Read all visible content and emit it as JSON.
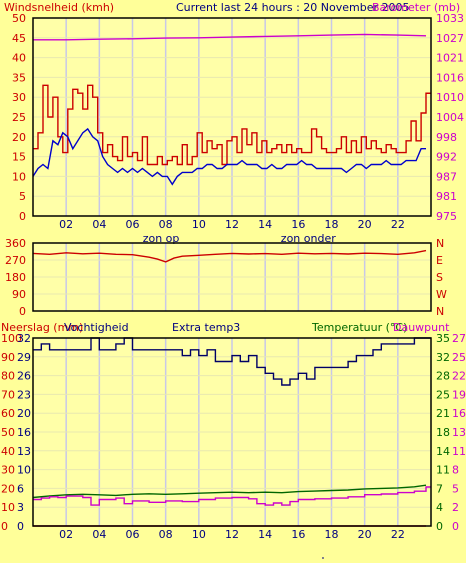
{
  "colors": {
    "background": "#ffff99",
    "plot_bg": "#ffffa8",
    "grid_v": "#c8c8e8",
    "wind_axis": "#cc0000",
    "baro_axis": "#cc00cc",
    "frame": "#000000",
    "blue": "#0000cc",
    "green": "#006600",
    "dark_green": "#006600"
  },
  "header": {
    "wind_title": "Windsnelheid (kmh)",
    "main_title": "Current last 24 hours : 20 November 2005",
    "baro_title": "Barometer (mb)"
  },
  "section3_header": {
    "left_title": "Neerslag (mm)",
    "humidity_title": "Vochtigheid",
    "extra_title": "Extra temp3",
    "temp_title": "Temperatuur (°C)",
    "dew_title": "Dauwpunt"
  },
  "axes": {
    "hour_ticks": [
      "02",
      "04",
      "06",
      "08",
      "10",
      "12",
      "14",
      "16",
      "18",
      "20",
      "22"
    ],
    "sunrise_label": "zon op",
    "sunset_label": "zon onder",
    "wind_ticks": [
      "0",
      "5",
      "10",
      "15",
      "20",
      "25",
      "30",
      "35",
      "40",
      "45",
      "50"
    ],
    "baro_ticks": [
      "975",
      "981",
      "987",
      "992",
      "998",
      "1004",
      "1010",
      "1016",
      "1021",
      "1027",
      "1033"
    ],
    "dir_ticks": [
      "0",
      "90",
      "180",
      "270",
      "360"
    ],
    "compass_labels": [
      "N",
      "W",
      "S",
      "E",
      "N"
    ],
    "rain_ticks": [
      "0",
      "10",
      "20",
      "30",
      "40",
      "50",
      "60",
      "70",
      "80",
      "90",
      "100"
    ],
    "humidity_ticks": [
      "0",
      "3",
      "6",
      "10",
      "13",
      "16",
      "20",
      "23",
      "26",
      "29",
      "32"
    ],
    "temp_ticks": [
      "0",
      "4",
      "7",
      "11",
      "14",
      "18",
      "21",
      "25",
      "28",
      "32",
      "35"
    ],
    "dew_ticks": [
      "0",
      "2",
      "5",
      "8",
      "11",
      "13",
      "16",
      "19",
      "22",
      "25",
      "27"
    ]
  },
  "chart_data": [
    {
      "type": "line",
      "panel": "wind-barometer",
      "x_unit": "hour",
      "x_range": [
        0,
        24
      ],
      "ylim": [
        0,
        50
      ],
      "y2lim": [
        975,
        1033
      ],
      "series": [
        {
          "name": "Windsnelheid (kmh)",
          "axis": "left",
          "color": "#cc0000",
          "x": [
            0,
            0.3,
            0.6,
            0.9,
            1.2,
            1.5,
            1.8,
            2.1,
            2.4,
            2.7,
            3,
            3.3,
            3.6,
            3.9,
            4.2,
            4.5,
            4.8,
            5.1,
            5.4,
            5.7,
            6,
            6.3,
            6.6,
            6.9,
            7.2,
            7.5,
            7.8,
            8.1,
            8.4,
            8.7,
            9,
            9.3,
            9.6,
            9.9,
            10.2,
            10.5,
            10.8,
            11.1,
            11.4,
            11.7,
            12,
            12.3,
            12.6,
            12.9,
            13.2,
            13.5,
            13.8,
            14.1,
            14.4,
            14.7,
            15,
            15.3,
            15.6,
            15.9,
            16.2,
            16.5,
            16.8,
            17.1,
            17.4,
            17.7,
            18,
            18.3,
            18.6,
            18.9,
            19.2,
            19.5,
            19.8,
            20.1,
            20.4,
            20.7,
            21,
            21.3,
            21.6,
            21.9,
            22.2,
            22.5,
            22.8,
            23.1,
            23.4,
            23.7
          ],
          "y": [
            17,
            21,
            33,
            25,
            30,
            20,
            16,
            27,
            32,
            31,
            27,
            33,
            30,
            21,
            16,
            18,
            15,
            14,
            20,
            15,
            16,
            14,
            20,
            13,
            13,
            15,
            13,
            14,
            15,
            13,
            18,
            13,
            15,
            21,
            16,
            19,
            17,
            18,
            13,
            19,
            20,
            16,
            22,
            18,
            21,
            16,
            19,
            16,
            17,
            18,
            16,
            18,
            16,
            17,
            16,
            16,
            22,
            20,
            17,
            16,
            16,
            17,
            20,
            16,
            19,
            16,
            20,
            17,
            19,
            17,
            16,
            18,
            17,
            16,
            16,
            19,
            24,
            19,
            26,
            31
          ]
        },
        {
          "name": "",
          "axis": "left",
          "color": "#0000cc",
          "x": [
            0,
            0.3,
            0.6,
            0.9,
            1.2,
            1.5,
            1.8,
            2.1,
            2.4,
            2.7,
            3,
            3.3,
            3.6,
            3.9,
            4.2,
            4.5,
            4.8,
            5.1,
            5.4,
            5.7,
            6,
            6.3,
            6.6,
            6.9,
            7.2,
            7.5,
            7.8,
            8.1,
            8.4,
            8.7,
            9,
            9.3,
            9.6,
            9.9,
            10.2,
            10.5,
            10.8,
            11.1,
            11.4,
            11.7,
            12,
            12.3,
            12.6,
            12.9,
            13.2,
            13.5,
            13.8,
            14.1,
            14.4,
            14.7,
            15,
            15.3,
            15.6,
            15.9,
            16.2,
            16.5,
            16.8,
            17.1,
            17.4,
            17.7,
            18,
            18.3,
            18.6,
            18.9,
            19.2,
            19.5,
            19.8,
            20.1,
            20.4,
            20.7,
            21,
            21.3,
            21.6,
            21.9,
            22.2,
            22.5,
            22.8,
            23.1,
            23.4,
            23.7
          ],
          "y": [
            10,
            12,
            13,
            12,
            19,
            18,
            21,
            20,
            17,
            19,
            21,
            22,
            20,
            19,
            15,
            13,
            12,
            11,
            12,
            11,
            12,
            11,
            12,
            11,
            10,
            11,
            10,
            10,
            8,
            10,
            11,
            11,
            11,
            12,
            12,
            13,
            13,
            12,
            12,
            13,
            13,
            13,
            14,
            13,
            13,
            13,
            12,
            12,
            13,
            12,
            12,
            13,
            13,
            13,
            14,
            13,
            13,
            12,
            12,
            12,
            12,
            12,
            12,
            11,
            12,
            13,
            13,
            12,
            13,
            13,
            13,
            14,
            13,
            13,
            13,
            14,
            14,
            14,
            17,
            17
          ]
        },
        {
          "name": "Barometer (mb)",
          "axis": "right",
          "color": "#cc00cc",
          "x": [
            0,
            2,
            4,
            6,
            8,
            10,
            12,
            14,
            16,
            18,
            20,
            22,
            23.7
          ],
          "y": [
            1026.6,
            1026.6,
            1026.8,
            1026.9,
            1027.1,
            1027.2,
            1027.4,
            1027.6,
            1027.8,
            1028.0,
            1028.2,
            1028.0,
            1027.8
          ]
        }
      ],
      "annotations": {
        "sunrise_hour": 7.6,
        "sunset_hour": 16.6
      }
    },
    {
      "type": "line",
      "panel": "wind-direction",
      "x_range": [
        0,
        24
      ],
      "ylim": [
        0,
        360
      ],
      "series": [
        {
          "name": "",
          "color": "#cc0000",
          "x": [
            0,
            1,
            2,
            3,
            4,
            5,
            6,
            7,
            7.5,
            8,
            8.5,
            9,
            10,
            11,
            12,
            13,
            14,
            15,
            16,
            17,
            18,
            19,
            20,
            21,
            22,
            23,
            23.7
          ],
          "y": [
            305,
            300,
            308,
            303,
            306,
            300,
            298,
            285,
            275,
            260,
            280,
            290,
            295,
            300,
            305,
            302,
            304,
            300,
            306,
            303,
            305,
            302,
            306,
            304,
            300,
            308,
            320
          ]
        }
      ]
    },
    {
      "type": "line",
      "panel": "humidity-temperature",
      "x_range": [
        0,
        24
      ],
      "ylim": [
        0,
        100
      ],
      "series": [
        {
          "name": "Vochtigheid",
          "axis": "humidity",
          "color": "#000066",
          "x": [
            0,
            0.5,
            1,
            2,
            3,
            3.5,
            4,
            5,
            5.5,
            6,
            7,
            8,
            9,
            9.5,
            10,
            10.5,
            11,
            12,
            12.5,
            13,
            13.5,
            14,
            14.5,
            15,
            15.5,
            16,
            16.5,
            17,
            18,
            19,
            19.5,
            20,
            20.5,
            21,
            22,
            23,
            23.7
          ],
          "y": [
            30,
            31,
            30,
            30,
            30,
            32,
            30,
            31,
            32,
            30,
            30,
            30,
            29,
            30,
            29,
            30,
            28,
            29,
            28,
            29,
            27,
            26,
            25,
            24,
            25,
            26,
            25,
            27,
            27,
            28,
            29,
            29,
            30,
            31,
            31,
            32,
            32
          ]
        },
        {
          "name": "Temperatuur (°C)",
          "axis": "temp",
          "color": "#006600",
          "x": [
            0,
            1,
            2,
            3,
            4,
            5,
            6,
            7,
            8,
            9,
            10,
            11,
            12,
            13,
            14,
            15,
            16,
            17,
            18,
            19,
            20,
            21,
            22,
            23,
            23.7
          ],
          "y": [
            5.3,
            5.6,
            5.8,
            5.9,
            5.8,
            5.7,
            5.9,
            6.0,
            5.9,
            6.0,
            6.1,
            6.2,
            6.3,
            6.2,
            6.3,
            6.2,
            6.4,
            6.5,
            6.6,
            6.7,
            6.9,
            7.0,
            7.1,
            7.3,
            7.6
          ]
        },
        {
          "name": "Dauwpunt",
          "axis": "dew",
          "color": "#cc00cc",
          "x": [
            0,
            0.5,
            1,
            1.5,
            2,
            3,
            3.5,
            4,
            5,
            5.5,
            6,
            7,
            8,
            9,
            10,
            11,
            12,
            13,
            13.5,
            14,
            14.5,
            15,
            15.5,
            16,
            17,
            18,
            19,
            20,
            21,
            22,
            23,
            23.7
          ],
          "y": [
            3.8,
            4.0,
            4.2,
            4.1,
            4.3,
            4.1,
            3.0,
            3.8,
            4.0,
            3.2,
            3.6,
            3.4,
            3.6,
            3.5,
            3.8,
            4.0,
            4.1,
            3.9,
            3.2,
            3.0,
            3.3,
            3.0,
            3.5,
            3.8,
            3.9,
            4.0,
            4.2,
            4.5,
            4.6,
            4.8,
            5.0,
            5.6
          ]
        },
        {
          "name": "Neerslag (mm)",
          "axis": "rain",
          "color": "#cc0000",
          "x": [
            0,
            23.7
          ],
          "y": [
            0,
            0
          ]
        }
      ]
    }
  ]
}
